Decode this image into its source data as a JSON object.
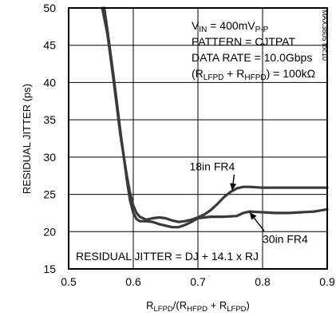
{
  "chart_data": {
    "type": "line",
    "title": "",
    "xlabel": {
      "main": "R",
      "sub1": "LFPD",
      "mid": "/(R",
      "sub2": "HFPD",
      "mid2": " + R",
      "sub3": "LFPD",
      "end": ")"
    },
    "ylabel": "RESIDUAL JITTER (ps)",
    "xlim": [
      0.5,
      0.9
    ],
    "ylim": [
      15,
      50
    ],
    "xticks": [
      "0.5",
      "0.6",
      "0.7",
      "0.8",
      "0.9"
    ],
    "yticks": [
      "15",
      "20",
      "25",
      "30",
      "35",
      "40",
      "45",
      "50"
    ],
    "grid": true,
    "annotations": {
      "conditions": [
        {
          "parts": [
            {
              "t": "V",
              "sub": false
            },
            {
              "t": "IN",
              "sub": true
            },
            {
              "t": " = 400mV",
              "sub": false
            },
            {
              "t": "P-P",
              "sub": true
            }
          ]
        },
        {
          "parts": [
            {
              "t": "PATTERN = CJTPAT",
              "sub": false
            }
          ]
        },
        {
          "parts": [
            {
              "t": "DATA RATE = 10.0Gbps",
              "sub": false
            }
          ]
        },
        {
          "parts": [
            {
              "t": "(R",
              "sub": false
            },
            {
              "t": "LFPD",
              "sub": true
            },
            {
              "t": " + R",
              "sub": false
            },
            {
              "t": "HFPD",
              "sub": true
            },
            {
              "t": ") = 100kΩ",
              "sub": false
            }
          ]
        }
      ],
      "formula": "RESIDUAL JITTER = DJ + 14.1 x RJ",
      "figure_id": "MAX3805 toc10"
    },
    "series": [
      {
        "name": "18in FR4",
        "x": [
          0.552,
          0.56,
          0.57,
          0.58,
          0.59,
          0.595,
          0.6,
          0.605,
          0.61,
          0.62,
          0.63,
          0.64,
          0.65,
          0.66,
          0.67,
          0.68,
          0.69,
          0.7,
          0.71,
          0.72,
          0.73,
          0.74,
          0.75,
          0.76,
          0.77,
          0.78,
          0.8,
          0.82,
          0.84,
          0.86,
          0.88,
          0.9
        ],
        "y": [
          50,
          46.5,
          40,
          33,
          27.5,
          25.2,
          23.5,
          22.5,
          22,
          21.6,
          21.8,
          21.9,
          21.8,
          21.5,
          21.3,
          21.4,
          21.6,
          21.9,
          22.3,
          22.9,
          23.7,
          24.6,
          25.3,
          25.8,
          26,
          26,
          25.9,
          25.9,
          25.9,
          25.9,
          25.9,
          25.9
        ]
      },
      {
        "name": "30in FR4",
        "x": [
          0.555,
          0.56,
          0.57,
          0.58,
          0.59,
          0.595,
          0.6,
          0.605,
          0.61,
          0.62,
          0.63,
          0.64,
          0.65,
          0.66,
          0.67,
          0.68,
          0.69,
          0.7,
          0.72,
          0.74,
          0.76,
          0.77,
          0.78,
          0.8,
          0.82,
          0.84,
          0.86,
          0.88,
          0.9
        ],
        "y": [
          50,
          47,
          40.5,
          33.5,
          27,
          24.2,
          22.5,
          21.7,
          21.4,
          21.4,
          21.3,
          21,
          20.8,
          20.6,
          20.6,
          20.9,
          21.3,
          21.8,
          22,
          22,
          22.1,
          22.5,
          22.7,
          22.6,
          22.5,
          22.5,
          22.6,
          22.7,
          23
        ]
      }
    ],
    "series_labels": [
      {
        "text": "18in FR4",
        "x": 0.687,
        "y": 28.2,
        "arrow_to": [
          0.753,
          25.5
        ]
      },
      {
        "text": "30in FR4",
        "x": 0.8,
        "y": 18.5,
        "arrow_to": [
          0.78,
          22.6
        ]
      }
    ]
  }
}
